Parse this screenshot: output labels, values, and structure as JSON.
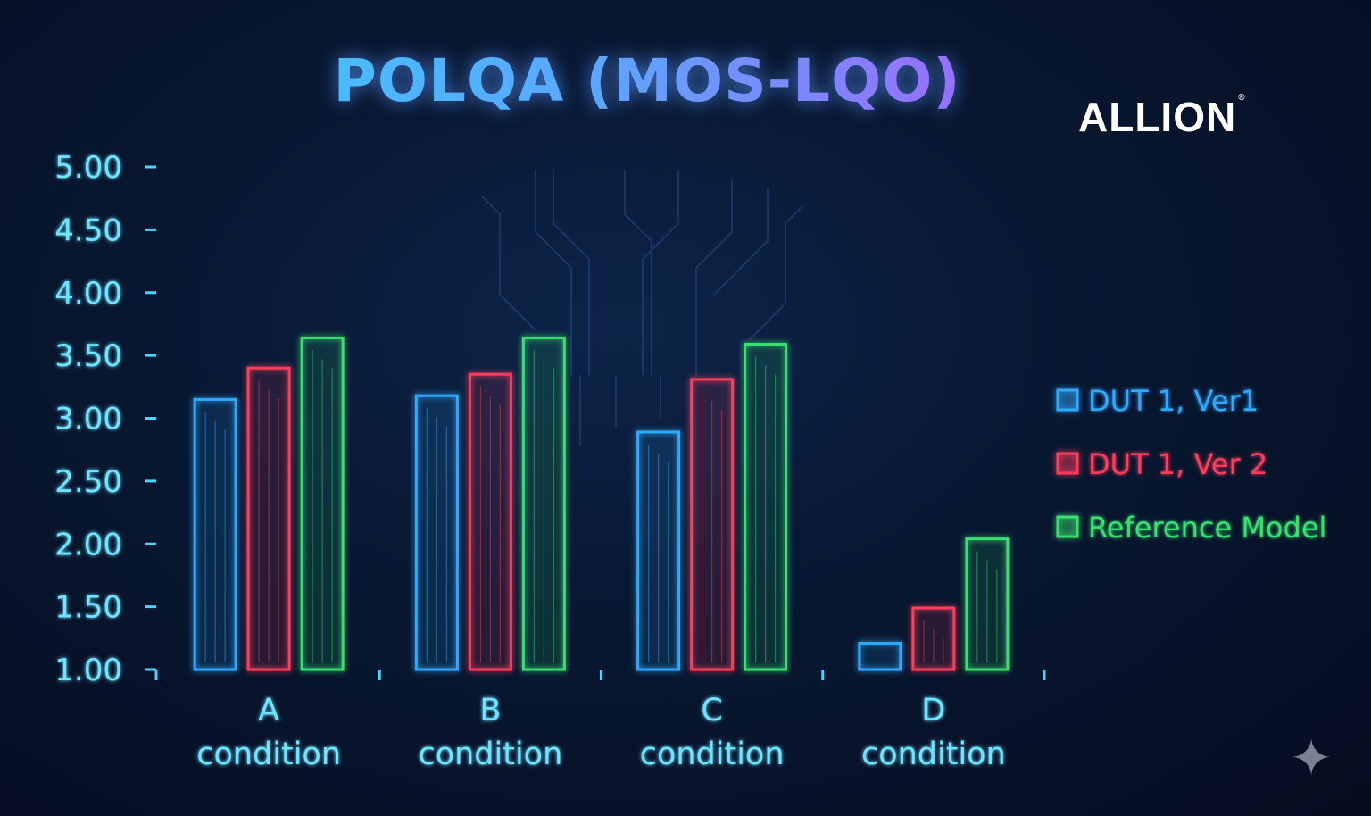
{
  "chart_data": {
    "type": "bar",
    "title": "POLQA (MOS-LQO)",
    "categories": [
      [
        "A",
        "condition"
      ],
      [
        "B",
        "condition"
      ],
      [
        "C",
        "condition"
      ],
      [
        "D",
        "condition"
      ]
    ],
    "series": [
      {
        "name": "DUT 1, Ver1",
        "color": "#2fa9ff",
        "values": [
          3.15,
          3.18,
          2.89,
          1.21
        ]
      },
      {
        "name": "DUT 1, Ver 2",
        "color": "#ff3c5a",
        "values": [
          3.4,
          3.35,
          3.31,
          1.49
        ]
      },
      {
        "name": "Reference Model",
        "color": "#37e070",
        "values": [
          3.64,
          3.64,
          3.59,
          2.04
        ]
      }
    ],
    "ylim": [
      1.0,
      5.0
    ],
    "yticks": [
      "1.00",
      "1.50",
      "2.00",
      "2.50",
      "3.00",
      "3.50",
      "4.00",
      "4.50",
      "5.00"
    ],
    "xlabel": "",
    "ylabel": "",
    "grid": true,
    "legend_position": "right"
  },
  "brand": {
    "logo_text": "ALLION",
    "logo_mark": "®"
  },
  "colors": {
    "axis": "#48d6ff",
    "grid": "#3b7fe6",
    "background": "#081731"
  }
}
